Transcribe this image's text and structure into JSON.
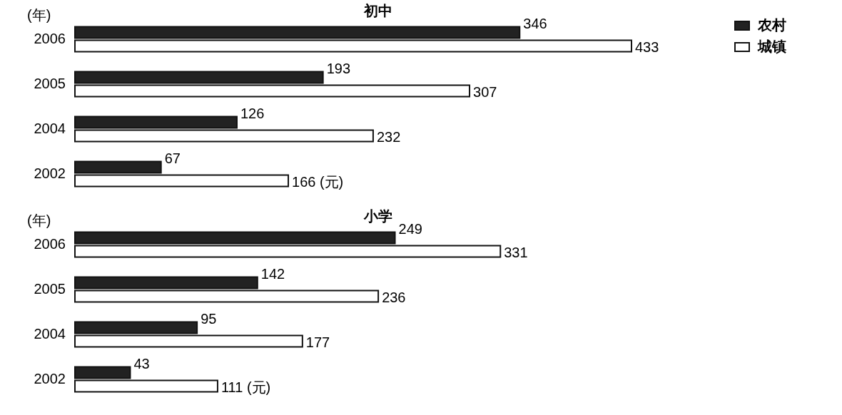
{
  "chart_data": [
    {
      "type": "bar",
      "orientation": "horizontal",
      "title": "初中",
      "ylabel": "(年)",
      "categories": [
        "2006",
        "2005",
        "2004",
        "2002"
      ],
      "legend": "top right",
      "series": [
        {
          "name": "农村",
          "color": "#222222",
          "values": [
            346,
            193,
            126,
            67
          ],
          "value_labels": [
            "346",
            "193",
            "126",
            "67"
          ]
        },
        {
          "name": "城镇",
          "color": "#ffffff",
          "values": [
            433,
            307,
            232,
            166
          ],
          "value_labels": [
            "433",
            "307",
            "232",
            "166 (元)"
          ]
        }
      ]
    },
    {
      "type": "bar",
      "orientation": "horizontal",
      "title": "小学",
      "ylabel": "(年)",
      "categories": [
        "2006",
        "2005",
        "2004",
        "2002"
      ],
      "series": [
        {
          "color": "#222222",
          "values": [
            249,
            142,
            95,
            43
          ],
          "value_labels": [
            "249",
            "142",
            "95",
            "43"
          ]
        },
        {
          "color": "#ffffff",
          "values": [
            331,
            236,
            177,
            111
          ],
          "value_labels": [
            "331",
            "236",
            "177",
            "111 (元)"
          ]
        }
      ]
    }
  ]
}
